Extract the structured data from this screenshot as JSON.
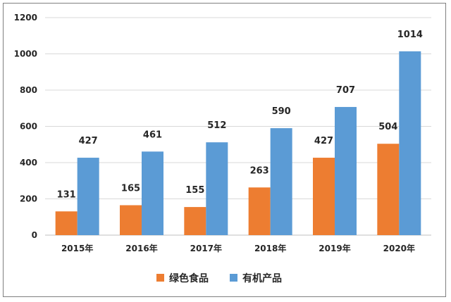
{
  "chart_data": {
    "type": "bar",
    "categories": [
      "2015年",
      "2016年",
      "2017年",
      "2018年",
      "2019年",
      "2020年"
    ],
    "series": [
      {
        "name": "绿色食品",
        "values": [
          131,
          165,
          155,
          263,
          427,
          504
        ],
        "color": "#ed7d31"
      },
      {
        "name": "有机产品",
        "values": [
          427,
          461,
          512,
          590,
          707,
          1014
        ],
        "color": "#5b9bd5"
      }
    ],
    "ylim": [
      0,
      1200
    ],
    "yticks": [
      0,
      200,
      400,
      600,
      800,
      1000,
      1200
    ],
    "grid": true,
    "legend_position": "bottom",
    "data_labels": true
  }
}
